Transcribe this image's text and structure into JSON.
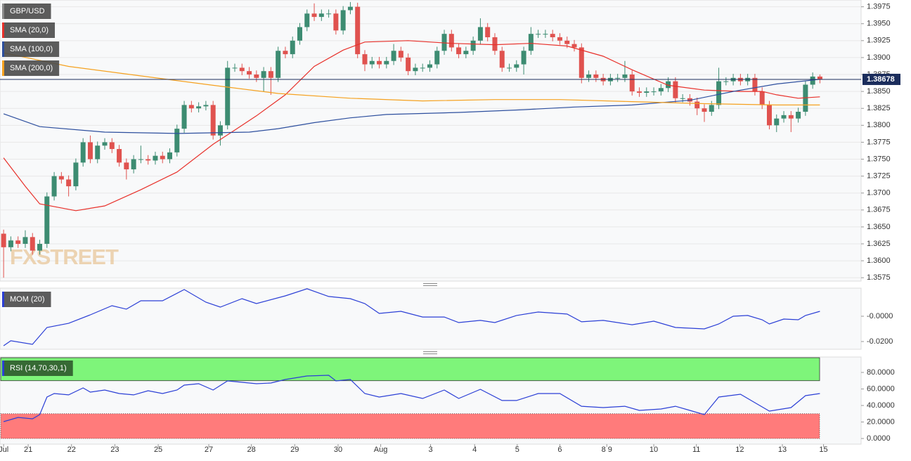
{
  "chart_data": [
    {
      "type": "candlestick",
      "title": "GBP/USD",
      "watermark": "FXSTREET",
      "up_color": "#3d8c72",
      "down_color": "#e0524f",
      "xlim": [
        -0.5,
        118.7
      ],
      "ylim": [
        1.357,
        1.3985
      ],
      "yticks": [
        1.3975,
        {
          "value": 1.395,
          "label": "1.3950"
        },
        1.3925,
        {
          "value": 1.39,
          "label": "1.3900"
        },
        1.3875,
        {
          "value": 1.385,
          "label": "1.3850"
        },
        1.3825,
        {
          "value": 1.38,
          "label": "1.3800"
        },
        1.3775,
        {
          "value": 1.375,
          "label": "1.3750"
        },
        1.3725,
        {
          "value": 1.37,
          "label": "1.3700"
        },
        1.3675,
        {
          "value": 1.365,
          "label": "1.3650"
        },
        1.3625,
        {
          "value": 1.36,
          "label": "1.3600"
        },
        1.3575
      ],
      "grid": true,
      "last_price": 1.38678,
      "last_color": "#1b2d5c",
      "open": [
        1.364,
        1.362,
        1.363,
        1.3625,
        1.3635,
        1.3615,
        1.3625,
        1.3695,
        1.3725,
        1.372,
        1.371,
        1.3745,
        1.3775,
        1.375,
        1.377,
        1.3775,
        1.3765,
        1.3745,
        1.3735,
        1.375,
        1.375,
        1.3748,
        1.3755,
        1.375,
        1.376,
        1.3795,
        1.383,
        1.3825,
        1.3828,
        1.383,
        1.3785,
        1.38,
        1.3885,
        1.3885,
        1.388,
        1.3875,
        1.387,
        1.388,
        1.387,
        1.391,
        1.3905,
        1.3925,
        1.3945,
        1.3965,
        1.396,
        1.3965,
        1.3965,
        1.394,
        1.397,
        1.3975,
        1.3905,
        1.389,
        1.3895,
        1.389,
        1.3895,
        1.391,
        1.39,
        1.388,
        1.3885,
        1.3885,
        1.389,
        1.391,
        1.3935,
        1.3915,
        1.3905,
        1.391,
        1.3925,
        1.3945,
        1.393,
        1.391,
        1.3885,
        1.3885,
        1.389,
        1.391,
        1.3935,
        1.3935,
        1.3935,
        1.393,
        1.3925,
        1.392,
        1.3915,
        1.387,
        1.3875,
        1.387,
        1.3865,
        1.387,
        1.387,
        1.3875,
        1.385,
        1.3848,
        1.385,
        1.385,
        1.3855,
        1.3865,
        1.384,
        1.384,
        1.3835,
        1.3825,
        1.382,
        1.383,
        1.3865,
        1.3865,
        1.387,
        1.3865,
        1.387,
        1.385,
        1.383,
        1.38,
        1.381,
        1.3815,
        1.381,
        1.382,
        1.386,
        1.3872
      ],
      "high": [
        1.3646,
        1.3636,
        1.3636,
        1.3645,
        1.3641,
        1.3631,
        1.3701,
        1.3731,
        1.3731,
        1.3726,
        1.3751,
        1.3781,
        1.3785,
        1.3776,
        1.3781,
        1.3781,
        1.3771,
        1.3751,
        1.3756,
        1.377,
        1.3756,
        1.3761,
        1.3761,
        1.3766,
        1.3801,
        1.3836,
        1.3836,
        1.3834,
        1.3836,
        1.3836,
        1.3806,
        1.3895,
        1.3891,
        1.3891,
        1.3886,
        1.3881,
        1.3886,
        1.3886,
        1.3916,
        1.3916,
        1.3931,
        1.3951,
        1.3971,
        1.398,
        1.3971,
        1.3971,
        1.3971,
        1.3976,
        1.3982,
        1.3981,
        1.3911,
        1.3901,
        1.3901,
        1.3901,
        1.392,
        1.3916,
        1.3906,
        1.3891,
        1.3891,
        1.3896,
        1.3916,
        1.3941,
        1.3941,
        1.3921,
        1.3916,
        1.3931,
        1.3958,
        1.3951,
        1.3936,
        1.3916,
        1.3891,
        1.3896,
        1.3916,
        1.3945,
        1.3941,
        1.3941,
        1.3941,
        1.3936,
        1.3931,
        1.3926,
        1.3921,
        1.3881,
        1.3881,
        1.3876,
        1.3876,
        1.3876,
        1.3895,
        1.3881,
        1.3856,
        1.3856,
        1.3856,
        1.3861,
        1.3871,
        1.3871,
        1.3846,
        1.3846,
        1.3841,
        1.3831,
        1.3836,
        1.3885,
        1.3871,
        1.3876,
        1.3876,
        1.3876,
        1.3876,
        1.3856,
        1.3836,
        1.3816,
        1.3821,
        1.3821,
        1.3826,
        1.3866,
        1.3878,
        1.3875
      ],
      "low": [
        1.3575,
        1.3614,
        1.3619,
        1.3619,
        1.3609,
        1.3609,
        1.3619,
        1.3689,
        1.3714,
        1.3695,
        1.3704,
        1.3739,
        1.3744,
        1.3744,
        1.3764,
        1.3759,
        1.3739,
        1.372,
        1.3729,
        1.3744,
        1.3742,
        1.3742,
        1.3744,
        1.3744,
        1.3754,
        1.3789,
        1.3819,
        1.3819,
        1.3822,
        1.3779,
        1.377,
        1.3794,
        1.3879,
        1.3874,
        1.3869,
        1.3864,
        1.385,
        1.3845,
        1.3864,
        1.3899,
        1.3899,
        1.3919,
        1.3939,
        1.3954,
        1.3954,
        1.3959,
        1.3934,
        1.3934,
        1.3964,
        1.3899,
        1.388,
        1.3884,
        1.3884,
        1.3884,
        1.3889,
        1.3894,
        1.3874,
        1.3874,
        1.3879,
        1.3879,
        1.3884,
        1.3904,
        1.3909,
        1.3899,
        1.3899,
        1.3904,
        1.3919,
        1.3924,
        1.3904,
        1.3879,
        1.3879,
        1.3879,
        1.3875,
        1.3904,
        1.3929,
        1.3929,
        1.3924,
        1.3919,
        1.3914,
        1.3909,
        1.3862,
        1.3864,
        1.3864,
        1.3859,
        1.3859,
        1.3864,
        1.3864,
        1.3844,
        1.3842,
        1.3842,
        1.3844,
        1.3844,
        1.3849,
        1.3834,
        1.3834,
        1.3829,
        1.3815,
        1.3805,
        1.3814,
        1.3824,
        1.3859,
        1.3859,
        1.3859,
        1.3859,
        1.3844,
        1.3824,
        1.3794,
        1.379,
        1.3804,
        1.379,
        1.3804,
        1.3814,
        1.3854,
        1.3862
      ],
      "close": [
        1.362,
        1.363,
        1.3625,
        1.3635,
        1.3615,
        1.3625,
        1.3695,
        1.3725,
        1.372,
        1.371,
        1.3745,
        1.3775,
        1.375,
        1.377,
        1.3775,
        1.3765,
        1.3745,
        1.3735,
        1.375,
        1.375,
        1.3748,
        1.3755,
        1.375,
        1.376,
        1.3795,
        1.383,
        1.3825,
        1.3828,
        1.383,
        1.3785,
        1.38,
        1.3885,
        1.3885,
        1.388,
        1.3875,
        1.387,
        1.388,
        1.387,
        1.391,
        1.3905,
        1.3925,
        1.3945,
        1.3965,
        1.396,
        1.3965,
        1.3965,
        1.394,
        1.397,
        1.3975,
        1.3905,
        1.389,
        1.3895,
        1.389,
        1.3895,
        1.391,
        1.39,
        1.388,
        1.3885,
        1.3885,
        1.389,
        1.391,
        1.3935,
        1.3915,
        1.3905,
        1.391,
        1.3925,
        1.3945,
        1.393,
        1.391,
        1.3885,
        1.3885,
        1.389,
        1.391,
        1.3935,
        1.3935,
        1.3935,
        1.393,
        1.3925,
        1.392,
        1.3915,
        1.387,
        1.3875,
        1.387,
        1.3865,
        1.387,
        1.387,
        1.3875,
        1.385,
        1.3848,
        1.385,
        1.385,
        1.3855,
        1.3865,
        1.384,
        1.384,
        1.3835,
        1.3825,
        1.382,
        1.383,
        1.3865,
        1.3865,
        1.387,
        1.3865,
        1.387,
        1.385,
        1.383,
        1.38,
        1.381,
        1.3815,
        1.381,
        1.382,
        1.386,
        1.3872,
        1.3868
      ],
      "series": [
        {
          "name": "SMA (20,0)",
          "color": "#e8302a",
          "x": [
            0,
            3,
            5,
            10,
            14,
            19,
            24,
            29,
            32,
            35,
            39,
            43,
            47,
            50,
            56,
            62,
            68,
            73,
            78,
            83,
            87,
            92,
            97,
            102,
            105,
            107,
            110,
            113
          ],
          "values": [
            1.3752,
            1.371,
            1.3684,
            1.3674,
            1.3681,
            1.3705,
            1.3731,
            1.3772,
            1.3793,
            1.3814,
            1.3845,
            1.3887,
            1.3911,
            1.3923,
            1.3925,
            1.3921,
            1.3919,
            1.3921,
            1.3917,
            1.3902,
            1.3882,
            1.3859,
            1.3852,
            1.385,
            1.385,
            1.3845,
            1.384,
            1.3842
          ]
        },
        {
          "name": "SMA (100,0)",
          "color": "#2d4f9e",
          "x": [
            0,
            5,
            14,
            24,
            34,
            38,
            43,
            48,
            53,
            63,
            72,
            79,
            87,
            95,
            101,
            107,
            113
          ],
          "values": [
            1.3817,
            1.3798,
            1.379,
            1.3788,
            1.379,
            1.3795,
            1.3804,
            1.3811,
            1.3816,
            1.3819,
            1.3823,
            1.3827,
            1.383,
            1.3837,
            1.385,
            1.3861,
            1.3868
          ]
        },
        {
          "name": "SMA (200,0)",
          "color": "#f5a11f",
          "x": [
            0,
            9,
            19,
            29,
            38,
            48,
            58,
            68,
            77,
            87,
            97,
            107,
            113
          ],
          "values": [
            1.3907,
            1.3887,
            1.3873,
            1.3859,
            1.3847,
            1.384,
            1.3836,
            1.3838,
            1.3838,
            1.3835,
            1.3832,
            1.383,
            1.383
          ]
        }
      ]
    },
    {
      "type": "line",
      "ylim": [
        -0.0261,
        0.0222
      ],
      "yticks": [
        {
          "value": 0,
          "label": "-0.0000"
        },
        {
          "value": -0.02,
          "label": "-0.0200"
        }
      ],
      "series": [
        {
          "name": "MOM (20)",
          "color": "#2b3fd6",
          "x": [
            0,
            1,
            4,
            6,
            9,
            12,
            15,
            17,
            19,
            22,
            25,
            28,
            30,
            33,
            35,
            39,
            42,
            45,
            48,
            50,
            52,
            55,
            58,
            61,
            63,
            66,
            68,
            71,
            74,
            78,
            80,
            83,
            87,
            90,
            93,
            97,
            99,
            101,
            103,
            105,
            106,
            108,
            110,
            111,
            113
          ],
          "values": [
            -0.0233,
            -0.0194,
            -0.0222,
            -0.0089,
            -0.0056,
            0.0011,
            0.0083,
            0.0056,
            0.0122,
            0.0122,
            0.0211,
            0.0111,
            0.0072,
            0.0139,
            0.01,
            0.0161,
            0.0217,
            0.0156,
            0.0139,
            0.01,
            0.0022,
            0.0039,
            -0.0006,
            -0.0006,
            -0.005,
            -0.0033,
            -0.005,
            0.0006,
            0.0033,
            0.0017,
            -0.0044,
            -0.0033,
            -0.0067,
            -0.0039,
            -0.0089,
            -0.01,
            -0.0061,
            0.0,
            0.0006,
            -0.0028,
            -0.0061,
            -0.0022,
            -0.0028,
            0.0006,
            0.0039
          ]
        }
      ]
    },
    {
      "type": "line",
      "ylim": [
        -6.8,
        98.7
      ],
      "yticks": [
        {
          "value": 80,
          "label": "80.0000"
        },
        {
          "value": 60,
          "label": "60.0000"
        },
        {
          "value": 40,
          "label": "40.0000"
        },
        {
          "value": 20,
          "label": "20.0000"
        },
        {
          "value": 0,
          "label": "0.0000"
        }
      ],
      "overbought": 70,
      "oversold": 30,
      "overbought_color": "#7ef57a",
      "oversold_color": "#ff7b7b",
      "xticks": [
        {
          "value": 0,
          "label": "Jul"
        },
        {
          "value": 3.4,
          "label": "21"
        },
        {
          "value": 9.4,
          "label": "22"
        },
        {
          "value": 15.4,
          "label": "23"
        },
        {
          "value": 21.4,
          "label": "25"
        },
        {
          "value": 28.4,
          "label": "27"
        },
        {
          "value": 34.3,
          "label": "28"
        },
        {
          "value": 40.3,
          "label": "29"
        },
        {
          "value": 46.3,
          "label": "30"
        },
        {
          "value": 52.2,
          "label": "Aug"
        },
        {
          "value": 59.1,
          "label": "3"
        },
        {
          "value": 65.2,
          "label": "4"
        },
        {
          "value": 71.1,
          "label": "5"
        },
        {
          "value": 77.0,
          "label": "6"
        },
        {
          "value": 83.5,
          "label": "8 9"
        },
        {
          "value": 90.0,
          "label": "10"
        },
        {
          "value": 95.9,
          "label": "11"
        },
        {
          "value": 101.9,
          "label": "12"
        },
        {
          "value": 107.8,
          "label": "13"
        },
        {
          "value": 113.5,
          "label": "15"
        }
      ],
      "series": [
        {
          "name": "RSI (14,70,30,1)",
          "color": "#2b3fd6",
          "x": [
            0,
            2,
            4,
            5,
            6,
            7,
            9,
            11,
            12,
            14,
            16,
            18,
            20,
            22,
            24,
            25,
            27,
            29,
            31,
            33,
            35,
            37,
            39,
            42,
            45,
            46,
            48,
            50,
            52,
            55,
            58,
            61,
            63,
            66,
            69,
            71,
            74,
            77,
            80,
            83,
            86,
            88,
            91,
            93,
            95,
            97,
            99,
            102,
            104,
            106,
            109,
            111,
            113
          ],
          "values": [
            20.4,
            25.5,
            23.8,
            28.9,
            50.2,
            54.5,
            52.8,
            61.3,
            56.2,
            58.7,
            54.5,
            52.8,
            57.9,
            54.5,
            58.7,
            64.7,
            66.4,
            58.7,
            69.8,
            68.1,
            66.4,
            67.2,
            71.5,
            75.7,
            76.6,
            69.8,
            71.5,
            54.5,
            50.2,
            54.5,
            48.5,
            58.7,
            48.5,
            59.6,
            46.0,
            46.0,
            54.5,
            54.5,
            39.1,
            37.4,
            39.1,
            34.0,
            35.7,
            39.1,
            34.0,
            28.9,
            50.2,
            53.6,
            43.4,
            33.2,
            37.4,
            51.9,
            54.5
          ]
        }
      ]
    }
  ]
}
